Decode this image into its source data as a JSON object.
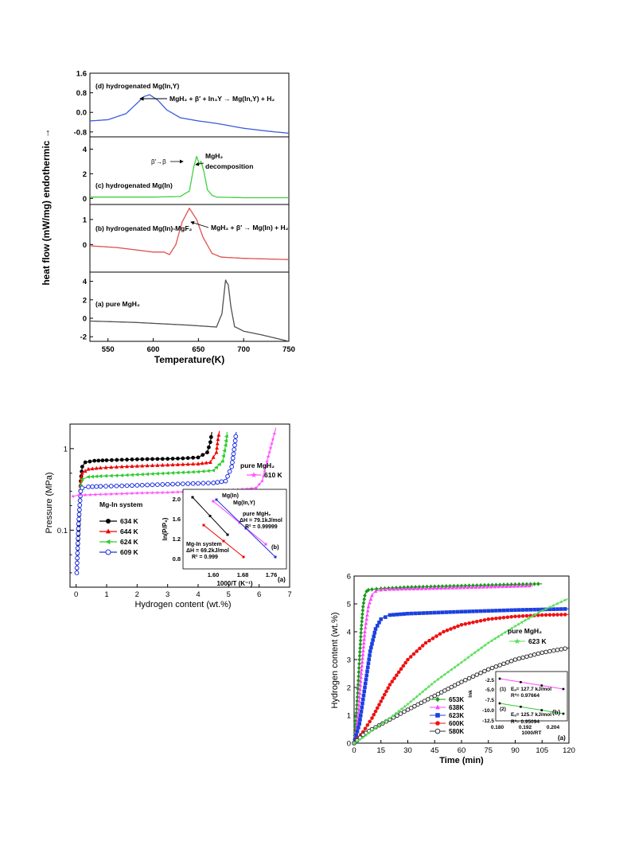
{
  "chart_data": [
    {
      "type": "line",
      "ylabel": "heat flow (mW/mg) endothermic →",
      "xlabel": "Temperature(K)",
      "xlim": [
        530,
        750
      ],
      "x_ticks": [
        "550",
        "600",
        "650",
        "700",
        "750"
      ],
      "grid": false,
      "panels": [
        {
          "id": "d",
          "label": "(d) hydrogenated Mg(In,Y)",
          "color": "#3b5bdb",
          "ylim": [
            -1.0,
            1.6
          ],
          "y_ticks": [
            "1.6",
            "0.8",
            "0.0",
            "-0.8"
          ],
          "y_tick_values": [
            1.6,
            0.8,
            0.0,
            -0.8
          ],
          "annotations": [
            "MgH₂ + β′ + In₃Y → Mg(In,Y) + H₂"
          ],
          "x": [
            530,
            550,
            570,
            580,
            590,
            596,
            605,
            615,
            630,
            650,
            670,
            700,
            730,
            750
          ],
          "y": [
            -0.35,
            -0.3,
            -0.05,
            0.3,
            0.65,
            0.72,
            0.5,
            0.1,
            -0.22,
            -0.35,
            -0.45,
            -0.65,
            -0.78,
            -0.85
          ]
        },
        {
          "id": "c",
          "label": "(c) hydrogenated Mg(In)",
          "color": "#40d040",
          "ylim": [
            -0.5,
            5
          ],
          "y_ticks": [
            "4",
            "2",
            "0"
          ],
          "y_tick_values": [
            4,
            2,
            0
          ],
          "annotations": [
            "β′→β",
            "MgH₂",
            "decomposition"
          ],
          "x": [
            530,
            600,
            630,
            640,
            645,
            648,
            651,
            653,
            656,
            660,
            665,
            670,
            700,
            750
          ],
          "y": [
            0.1,
            0.1,
            0.15,
            0.6,
            2.6,
            3.4,
            2.8,
            3.0,
            2.2,
            0.7,
            0.25,
            0.1,
            0.05,
            0.05
          ]
        },
        {
          "id": "b",
          "label": "(b) hydrogenated Mg(In)-MgF₂",
          "color": "#e05050",
          "ylim": [
            -1.1,
            1.6
          ],
          "y_ticks": [
            "1",
            "0"
          ],
          "y_tick_values": [
            1,
            0
          ],
          "annotations": [
            "MgH₂ + β′ → Mg(In) + H₂"
          ],
          "x": [
            530,
            560,
            600,
            612,
            618,
            625,
            632,
            640,
            648,
            655,
            665,
            675,
            700,
            750
          ],
          "y": [
            -0.05,
            -0.12,
            -0.3,
            -0.3,
            -0.4,
            0.0,
            0.9,
            1.45,
            1.0,
            0.3,
            -0.35,
            -0.5,
            -0.55,
            -0.6
          ]
        },
        {
          "id": "a",
          "label": "(a) pure MgH₂",
          "color": "#505050",
          "ylim": [
            -2.5,
            5
          ],
          "y_ticks": [
            "4",
            "2",
            "0",
            "-2"
          ],
          "y_tick_values": [
            4,
            2,
            0,
            -2
          ],
          "annotations": [],
          "x": [
            530,
            580,
            640,
            670,
            676,
            680,
            683,
            686,
            690,
            700,
            720,
            750
          ],
          "y": [
            -0.3,
            -0.45,
            -0.75,
            -0.95,
            0.5,
            4.1,
            3.6,
            1.2,
            -0.9,
            -1.4,
            -1.8,
            -2.5
          ]
        }
      ]
    },
    {
      "type": "line",
      "ylabel": "Pressure (MPa)",
      "xlabel": "Hydrogen content (wt.%)",
      "xlim": [
        -0.2,
        7
      ],
      "ylim_log": [
        0.02,
        2
      ],
      "log_y": true,
      "x_ticks": [
        "0",
        "1",
        "2",
        "3",
        "4",
        "5",
        "6",
        "7"
      ],
      "y_ticks": [
        "1",
        "0.1"
      ],
      "legend_title": "Mg-In system",
      "series": [
        {
          "name": "634 K",
          "color": "#000000",
          "marker": "circle",
          "x": [
            0.02,
            0.08,
            0.15,
            0.2,
            0.3,
            0.6,
            1.0,
            1.5,
            2.0,
            2.5,
            3.0,
            3.5,
            4.0,
            4.3,
            4.4,
            4.45
          ],
          "y": [
            0.03,
            0.1,
            0.4,
            0.6,
            0.68,
            0.71,
            0.72,
            0.73,
            0.74,
            0.745,
            0.75,
            0.76,
            0.78,
            0.9,
            1.2,
            1.6
          ]
        },
        {
          "name": "644 K",
          "color": "#ee0000",
          "marker": "triangle",
          "x": [
            0.02,
            0.08,
            0.15,
            0.2,
            0.4,
            0.8,
            1.5,
            2.0,
            2.5,
            3.0,
            3.5,
            4.0,
            4.4,
            4.6,
            4.65,
            4.7
          ],
          "y": [
            0.03,
            0.12,
            0.4,
            0.5,
            0.56,
            0.58,
            0.6,
            0.61,
            0.62,
            0.63,
            0.64,
            0.65,
            0.68,
            0.9,
            1.3,
            1.65
          ]
        },
        {
          "name": "624 K",
          "color": "#2ecc2e",
          "marker": "triangle-left",
          "x": [
            0.02,
            0.08,
            0.15,
            0.2,
            0.4,
            0.8,
            1.5,
            2.0,
            2.5,
            3.0,
            3.5,
            4.0,
            4.5,
            4.8,
            4.9,
            4.95
          ],
          "y": [
            0.03,
            0.12,
            0.35,
            0.42,
            0.45,
            0.46,
            0.47,
            0.48,
            0.49,
            0.5,
            0.51,
            0.52,
            0.54,
            0.7,
            1.1,
            1.6
          ]
        },
        {
          "name": "609 K",
          "color": "#1c2ee0",
          "marker": "circle-open",
          "x": [
            0.02,
            0.08,
            0.15,
            0.2,
            0.4,
            0.8,
            1.5,
            2.0,
            2.5,
            3.0,
            3.5,
            4.0,
            4.5,
            4.9,
            5.1,
            5.2,
            5.25
          ],
          "y": [
            0.03,
            0.12,
            0.3,
            0.33,
            0.34,
            0.345,
            0.35,
            0.355,
            0.36,
            0.365,
            0.37,
            0.375,
            0.38,
            0.4,
            0.6,
            1.1,
            1.6
          ]
        },
        {
          "name": "610 K",
          "label": "pure MgH₂",
          "color": "#ff55ff",
          "marker": "star",
          "x": [
            -0.1,
            0.1,
            0.3,
            0.8,
            1.5,
            2.0,
            3.0,
            4.0,
            5.0,
            5.6,
            5.9,
            6.1,
            6.3,
            6.45,
            6.55
          ],
          "y": [
            0.26,
            0.27,
            0.27,
            0.275,
            0.28,
            0.285,
            0.29,
            0.3,
            0.31,
            0.32,
            0.33,
            0.4,
            0.8,
            1.3,
            1.8
          ]
        }
      ],
      "inset": {
        "panel_label": "(a)",
        "xlabel": "1000/T (K⁻¹)",
        "ylabel": "ln(P/P₀)",
        "x_ticks": [
          "1.60",
          "1.68",
          "1.76"
        ],
        "y_ticks": [
          "2.0",
          "1.6",
          "1.2",
          "0.8"
        ],
        "annotations": [
          "Mg(In)",
          "Mg(In,Y)",
          "pure MgH₂",
          "ΔH = 79.1kJ/mol",
          "R² = 0.99999",
          "Mg-In system",
          "ΔH = 69.2kJ/mol",
          "R² = 0.999",
          "(b)"
        ]
      }
    },
    {
      "type": "line",
      "ylabel": "Hydrogen content (wt.%)",
      "xlabel": "Time (min)",
      "xlim": [
        0,
        120
      ],
      "ylim": [
        0,
        6
      ],
      "x_ticks": [
        "0",
        "15",
        "30",
        "45",
        "60",
        "75",
        "90",
        "105",
        "120"
      ],
      "y_ticks": [
        "0",
        "1",
        "2",
        "3",
        "4",
        "5",
        "6"
      ],
      "series": [
        {
          "name": "653K",
          "color": "#1a9a1a",
          "marker": "diamond",
          "x": [
            0,
            1,
            2,
            3,
            4,
            5,
            6,
            7,
            8,
            10,
            15,
            30,
            60,
            90,
            105
          ],
          "y": [
            0,
            0.8,
            1.8,
            3.0,
            4.1,
            4.9,
            5.3,
            5.45,
            5.5,
            5.52,
            5.55,
            5.6,
            5.65,
            5.7,
            5.72
          ]
        },
        {
          "name": "638K",
          "color": "#ff44ff",
          "marker": "triangle",
          "x": [
            0,
            2,
            4,
            6,
            8,
            10,
            12,
            15,
            20,
            40,
            70,
            100
          ],
          "y": [
            0,
            0.8,
            2.5,
            4.0,
            4.9,
            5.3,
            5.45,
            5.5,
            5.52,
            5.55,
            5.6,
            5.65
          ]
        },
        {
          "name": "623K",
          "color": "#1c40e0",
          "marker": "square",
          "x": [
            0,
            3,
            6,
            9,
            12,
            15,
            20,
            30,
            60,
            90,
            120
          ],
          "y": [
            0,
            0.7,
            2.0,
            3.3,
            4.1,
            4.45,
            4.6,
            4.65,
            4.72,
            4.78,
            4.82
          ]
        },
        {
          "name": "600K",
          "color": "#ee1111",
          "marker": "circle",
          "x": [
            0,
            5,
            10,
            15,
            20,
            30,
            40,
            50,
            60,
            75,
            90,
            105,
            120
          ],
          "y": [
            0,
            0.4,
            0.9,
            1.5,
            2.1,
            3.0,
            3.6,
            4.0,
            4.25,
            4.45,
            4.55,
            4.6,
            4.62
          ]
        },
        {
          "name": "580K",
          "color": "#333333",
          "marker": "circle-open",
          "x": [
            0,
            5,
            10,
            20,
            30,
            45,
            60,
            75,
            90,
            105,
            120
          ],
          "y": [
            0,
            0.3,
            0.5,
            0.85,
            1.2,
            1.7,
            2.2,
            2.65,
            3.0,
            3.25,
            3.42
          ]
        },
        {
          "name": "623 K",
          "label": "pure MgH₂",
          "color": "#55dd55",
          "marker": "star",
          "x": [
            0,
            5,
            10,
            20,
            30,
            45,
            60,
            75,
            90,
            105,
            120
          ],
          "y": [
            0,
            0.2,
            0.45,
            0.9,
            1.4,
            2.2,
            2.9,
            3.6,
            4.2,
            4.75,
            5.2
          ]
        }
      ],
      "inset": {
        "panel_label": "(a)",
        "panel_label_b": "(b)",
        "xlabel": "1000/RT",
        "ylabel": "lnk",
        "x_ticks": [
          "0.180",
          "0.192",
          "0.204"
        ],
        "y_ticks": [
          "-2.5",
          "-5.0",
          "-7.5",
          "-10.0",
          "-12.5"
        ],
        "annotations": [
          "(1)",
          "Eₐ= 127.7 kJ/mol",
          "R²= 0.97664",
          "(2)",
          "Eₐ= 125.7 kJ/mol",
          "R²= 0.95094"
        ]
      }
    }
  ]
}
